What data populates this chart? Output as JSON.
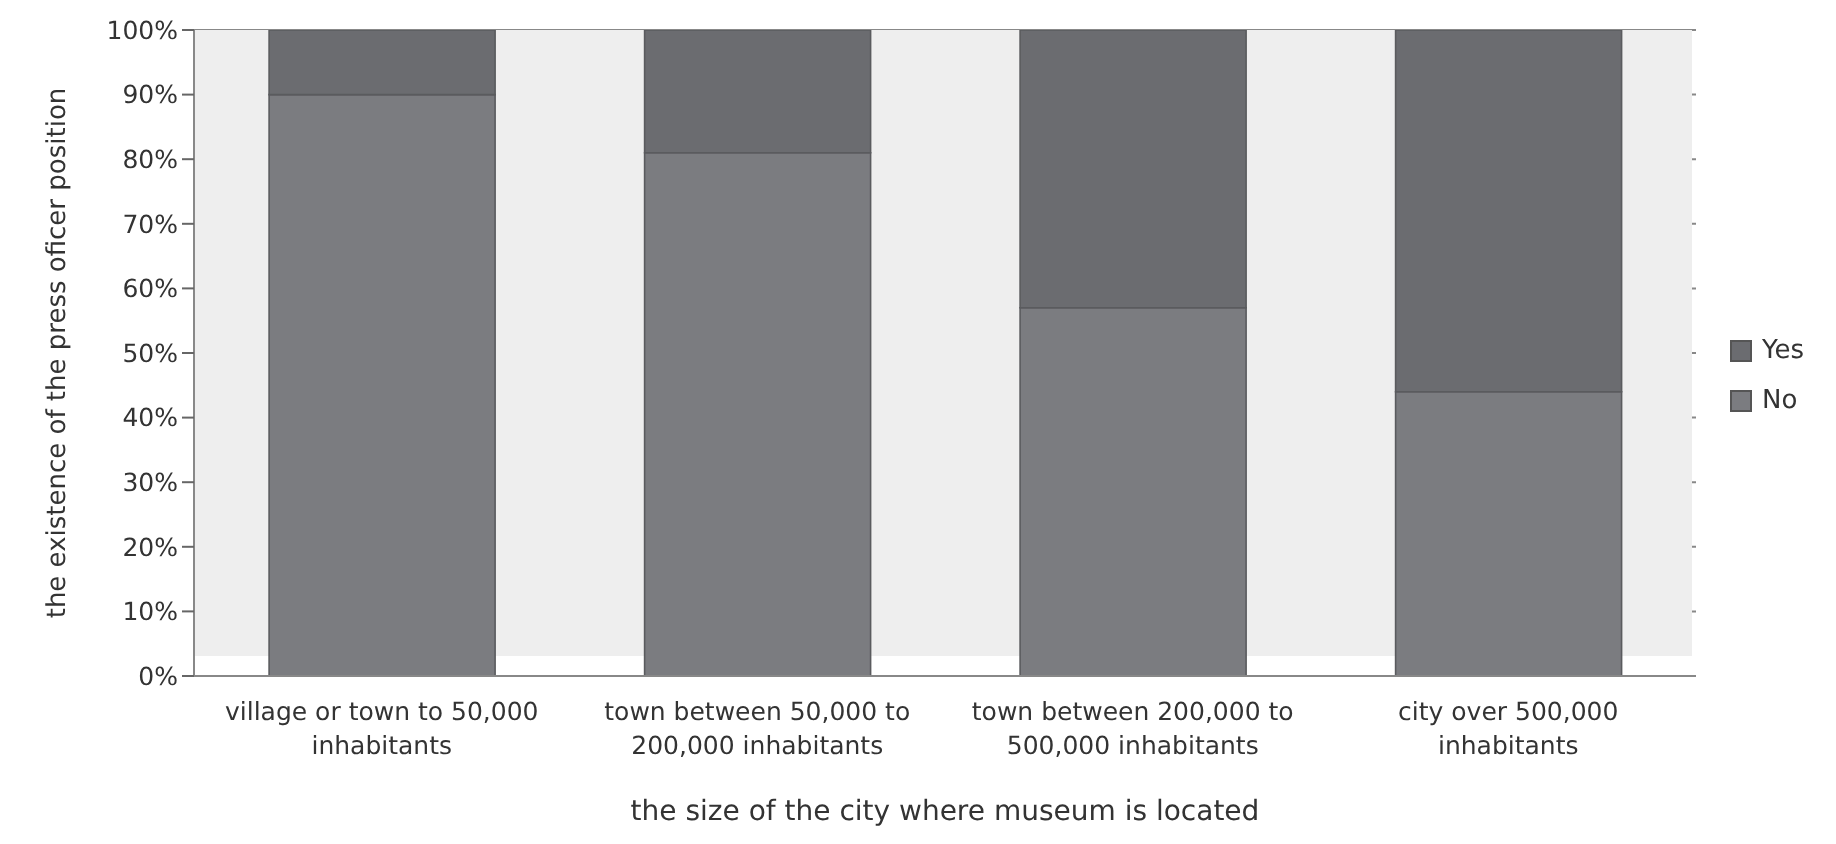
{
  "chart_data": {
    "type": "bar",
    "stacked": true,
    "xlabel": "the size of the city where museum is located",
    "ylabel": "the existence of the press oficer position",
    "categories": [
      "village or town to 50,000 inhabitants",
      "town between 50,000 to 200,000 inhabitants",
      "town between 200,000 to 500,000 inhabitants",
      "city over 500,000 inhabitants"
    ],
    "series": [
      {
        "name": "No",
        "color": "#7b7c80",
        "values": [
          90,
          81,
          57,
          44
        ]
      },
      {
        "name": "Yes",
        "color": "#6b6c70",
        "values": [
          10,
          19,
          43,
          56
        ]
      }
    ],
    "ylim": [
      0,
      100
    ],
    "yticks": [
      {
        "value": 0,
        "label": "0%"
      },
      {
        "value": 10,
        "label": "10%"
      },
      {
        "value": 20,
        "label": "20%"
      },
      {
        "value": 30,
        "label": "30%"
      },
      {
        "value": 40,
        "label": "40%"
      },
      {
        "value": 50,
        "label": "50%"
      },
      {
        "value": 60,
        "label": "60%"
      },
      {
        "value": 70,
        "label": "70%"
      },
      {
        "value": 80,
        "label": "80%"
      },
      {
        "value": 90,
        "label": "90%"
      },
      {
        "value": 100,
        "label": "100%"
      }
    ],
    "grid": "y",
    "legend": "right"
  }
}
